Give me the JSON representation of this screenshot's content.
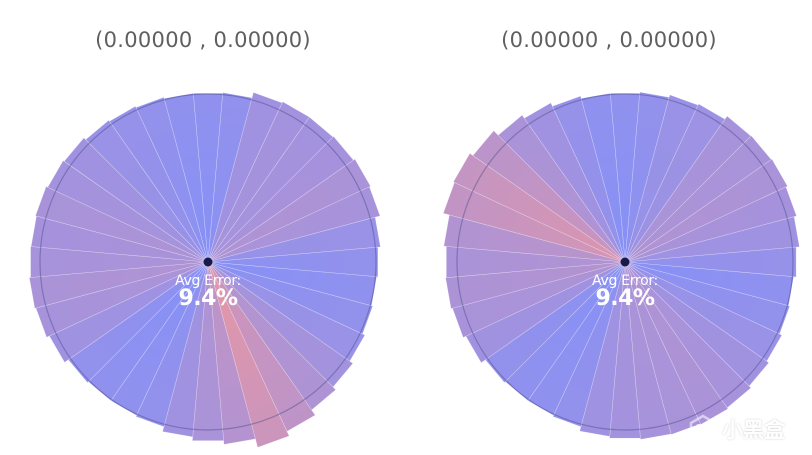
{
  "panels": [
    {
      "title": "(0.00000 , 0.00000)",
      "avg_error_label": "Avg Error:",
      "avg_error_value": "9.4%",
      "sector_errors": [
        0.05,
        0.08,
        0.3,
        0.35,
        0.35,
        0.38,
        0.45,
        0.4,
        0.2,
        0.1,
        0.05,
        0.1,
        0.2,
        0.35,
        0.5,
        0.75,
        0.95,
        0.6,
        0.45,
        0.3,
        0.1,
        0.05,
        0.05,
        0.1,
        0.28,
        0.4,
        0.45,
        0.4,
        0.38,
        0.42,
        0.35,
        0.3,
        0.2,
        0.15,
        0.1,
        0.05
      ]
    },
    {
      "title": "(0.00000 , 0.00000)",
      "avg_error_label": "Avg Error:",
      "avg_error_value": "9.4%",
      "sector_errors": [
        0.05,
        0.1,
        0.2,
        0.25,
        0.4,
        0.42,
        0.45,
        0.38,
        0.28,
        0.15,
        0.05,
        0.1,
        0.2,
        0.3,
        0.4,
        0.45,
        0.42,
        0.4,
        0.35,
        0.28,
        0.1,
        0.05,
        0.05,
        0.1,
        0.3,
        0.42,
        0.48,
        0.45,
        0.55,
        0.8,
        0.85,
        0.7,
        0.45,
        0.3,
        0.15,
        0.05
      ]
    }
  ],
  "colors": {
    "low_error": "#6b7dfa",
    "high_error": "#f58585",
    "inner_circle": "#4a4a8a",
    "center_dot": "#1a1a4a",
    "title_text": "#5f5f5f"
  },
  "watermark": {
    "text": "小黑盒",
    "icon": "heybox-logo-icon"
  }
}
